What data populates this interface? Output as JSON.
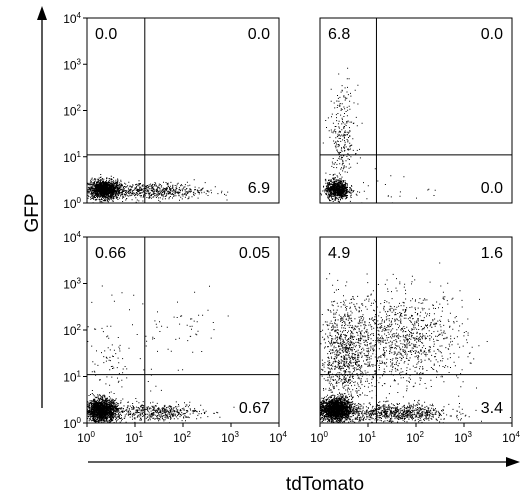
{
  "chart_data": {
    "type": "scatter",
    "title": "",
    "xlabel": "tdTomato",
    "ylabel": "GFP",
    "scale": "log",
    "xlim": [
      1,
      10000
    ],
    "ylim": [
      1,
      10000
    ],
    "tick_base": "10",
    "tick_exponents": [
      "0",
      "1",
      "2",
      "3",
      "4"
    ],
    "colors": {
      "points": "#000000",
      "gate_lines": "#000000",
      "frame": "#000000"
    },
    "panels": [
      {
        "id": "top-left",
        "gate": {
          "x": 16,
          "y": 11
        },
        "quadrants": {
          "upper_left": "0.0",
          "upper_right": "0.0",
          "lower_right": "6.9"
        }
      },
      {
        "id": "top-right",
        "gate": {
          "x": 15,
          "y": 11
        },
        "quadrants": {
          "upper_left": "6.8",
          "upper_right": "0.0",
          "lower_right": "0.0"
        }
      },
      {
        "id": "bottom-left",
        "gate": {
          "x": 16,
          "y": 11
        },
        "quadrants": {
          "upper_left": "0.66",
          "upper_right": "0.05",
          "lower_right": "0.67"
        }
      },
      {
        "id": "bottom-right",
        "gate": {
          "x": 15,
          "y": 11
        },
        "quadrants": {
          "upper_left": "4.9",
          "upper_right": "1.6",
          "lower_right": "3.4"
        }
      }
    ]
  }
}
